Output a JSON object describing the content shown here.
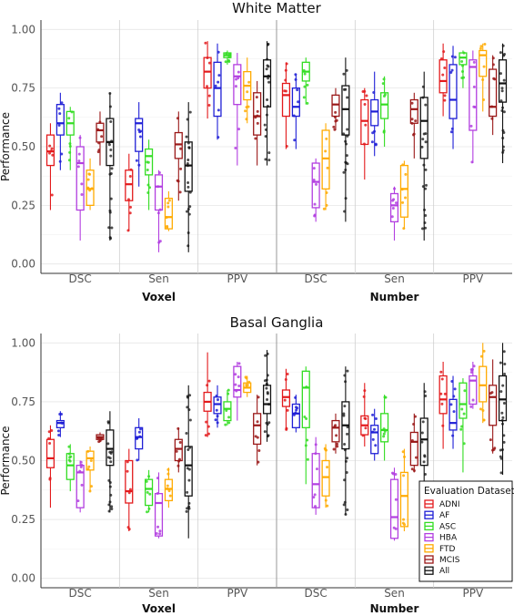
{
  "chart_data": {
    "type": "box",
    "ylabel": "Performance",
    "yticks": [
      0.0,
      0.25,
      0.5,
      0.75,
      1.0
    ],
    "ytick_labels": [
      "0.00",
      "0.25",
      "0.50",
      "0.75",
      "1.00"
    ],
    "ylim": [
      -0.04,
      1.04
    ],
    "groups": [
      "Voxel",
      "Number"
    ],
    "categories": [
      "DSC",
      "Sen",
      "PPV"
    ],
    "legend": {
      "title": "Evaluation Dataset",
      "placement": "bottom-right",
      "entries": [
        {
          "name": "ADNI",
          "color": "#e31a1c"
        },
        {
          "name": "AF",
          "color": "#1f1fd6"
        },
        {
          "name": "ASC",
          "color": "#33dd22"
        },
        {
          "name": "HBA",
          "color": "#b23ee0"
        },
        {
          "name": "FTD",
          "color": "#ffaa00"
        },
        {
          "name": "MCIS",
          "color": "#9a1818"
        },
        {
          "name": "All",
          "color": "#111111"
        }
      ]
    },
    "panels": [
      {
        "title": "White Matter",
        "groups": [
          {
            "name": "Voxel",
            "categories": [
              {
                "name": "DSC",
                "boxes": [
                  {
                    "q1": 0.42,
                    "med": 0.48,
                    "q3": 0.55,
                    "lo": 0.23,
                    "hi": 0.6
                  },
                  {
                    "q1": 0.55,
                    "med": 0.6,
                    "q3": 0.68,
                    "lo": 0.4,
                    "hi": 0.73
                  },
                  {
                    "q1": 0.55,
                    "med": 0.6,
                    "q3": 0.65,
                    "lo": 0.4,
                    "hi": 0.67
                  },
                  {
                    "q1": 0.23,
                    "med": 0.43,
                    "q3": 0.5,
                    "lo": 0.1,
                    "hi": 0.55
                  },
                  {
                    "q1": 0.25,
                    "med": 0.32,
                    "q3": 0.4,
                    "lo": 0.23,
                    "hi": 0.45
                  },
                  {
                    "q1": 0.52,
                    "med": 0.57,
                    "q3": 0.6,
                    "lo": 0.42,
                    "hi": 0.65
                  },
                  {
                    "q1": 0.42,
                    "med": 0.52,
                    "q3": 0.62,
                    "lo": 0.1,
                    "hi": 0.73
                  }
                ]
              },
              {
                "name": "Sen",
                "boxes": [
                  {
                    "q1": 0.27,
                    "med": 0.34,
                    "q3": 0.4,
                    "lo": 0.14,
                    "hi": 0.47
                  },
                  {
                    "q1": 0.48,
                    "med": 0.6,
                    "q3": 0.62,
                    "lo": 0.33,
                    "hi": 0.69
                  },
                  {
                    "q1": 0.38,
                    "med": 0.46,
                    "q3": 0.49,
                    "lo": 0.23,
                    "hi": 0.53
                  },
                  {
                    "q1": 0.23,
                    "med": 0.33,
                    "q3": 0.38,
                    "lo": 0.05,
                    "hi": 0.4
                  },
                  {
                    "q1": 0.15,
                    "med": 0.2,
                    "q3": 0.28,
                    "lo": 0.14,
                    "hi": 0.31
                  },
                  {
                    "q1": 0.45,
                    "med": 0.51,
                    "q3": 0.56,
                    "lo": 0.27,
                    "hi": 0.65
                  },
                  {
                    "q1": 0.31,
                    "med": 0.42,
                    "q3": 0.52,
                    "lo": 0.05,
                    "hi": 0.69
                  }
                ]
              },
              {
                "name": "PPV",
                "boxes": [
                  {
                    "q1": 0.75,
                    "med": 0.82,
                    "q3": 0.88,
                    "lo": 0.62,
                    "hi": 0.95
                  },
                  {
                    "q1": 0.63,
                    "med": 0.75,
                    "q3": 0.86,
                    "lo": 0.53,
                    "hi": 0.94
                  },
                  {
                    "q1": 0.88,
                    "med": 0.89,
                    "q3": 0.9,
                    "lo": 0.85,
                    "hi": 0.91
                  },
                  {
                    "q1": 0.68,
                    "med": 0.8,
                    "q3": 0.85,
                    "lo": 0.42,
                    "hi": 0.9
                  },
                  {
                    "q1": 0.7,
                    "med": 0.76,
                    "q3": 0.82,
                    "lo": 0.6,
                    "hi": 0.88
                  },
                  {
                    "q1": 0.55,
                    "med": 0.63,
                    "q3": 0.73,
                    "lo": 0.42,
                    "hi": 0.78
                  },
                  {
                    "q1": 0.67,
                    "med": 0.8,
                    "q3": 0.87,
                    "lo": 0.42,
                    "hi": 0.95
                  }
                ]
              }
            ]
          },
          {
            "name": "Number",
            "categories": [
              {
                "name": "DSC",
                "boxes": [
                  {
                    "q1": 0.63,
                    "med": 0.72,
                    "q3": 0.77,
                    "lo": 0.49,
                    "hi": 0.86
                  },
                  {
                    "q1": 0.63,
                    "med": 0.67,
                    "q3": 0.75,
                    "lo": 0.49,
                    "hi": 0.81
                  },
                  {
                    "q1": 0.78,
                    "med": 0.82,
                    "q3": 0.86,
                    "lo": 0.68,
                    "hi": 0.88
                  },
                  {
                    "q1": 0.24,
                    "med": 0.35,
                    "q3": 0.43,
                    "lo": 0.18,
                    "hi": 0.45
                  },
                  {
                    "q1": 0.32,
                    "med": 0.45,
                    "q3": 0.57,
                    "lo": 0.23,
                    "hi": 0.6
                  },
                  {
                    "q1": 0.63,
                    "med": 0.68,
                    "q3": 0.72,
                    "lo": 0.57,
                    "hi": 0.75
                  },
                  {
                    "q1": 0.55,
                    "med": 0.66,
                    "q3": 0.76,
                    "lo": 0.18,
                    "hi": 0.88
                  }
                ]
              },
              {
                "name": "Sen",
                "boxes": [
                  {
                    "q1": 0.51,
                    "med": 0.61,
                    "q3": 0.7,
                    "lo": 0.36,
                    "hi": 0.75
                  },
                  {
                    "q1": 0.59,
                    "med": 0.65,
                    "q3": 0.7,
                    "lo": 0.46,
                    "hi": 0.82
                  },
                  {
                    "q1": 0.62,
                    "med": 0.68,
                    "q3": 0.73,
                    "lo": 0.5,
                    "hi": 0.8
                  },
                  {
                    "q1": 0.18,
                    "med": 0.25,
                    "q3": 0.3,
                    "lo": 0.1,
                    "hi": 0.33
                  },
                  {
                    "q1": 0.2,
                    "med": 0.32,
                    "q3": 0.42,
                    "lo": 0.15,
                    "hi": 0.44
                  },
                  {
                    "q1": 0.6,
                    "med": 0.66,
                    "q3": 0.7,
                    "lo": 0.45,
                    "hi": 0.73
                  },
                  {
                    "q1": 0.45,
                    "med": 0.61,
                    "q3": 0.71,
                    "lo": 0.1,
                    "hi": 0.82
                  }
                ]
              },
              {
                "name": "PPV",
                "boxes": [
                  {
                    "q1": 0.73,
                    "med": 0.78,
                    "q3": 0.87,
                    "lo": 0.63,
                    "hi": 0.94
                  },
                  {
                    "q1": 0.62,
                    "med": 0.7,
                    "q3": 0.85,
                    "lo": 0.49,
                    "hi": 0.93
                  },
                  {
                    "q1": 0.85,
                    "med": 0.88,
                    "q3": 0.9,
                    "lo": 0.75,
                    "hi": 0.91
                  },
                  {
                    "q1": 0.57,
                    "med": 0.84,
                    "q3": 0.87,
                    "lo": 0.43,
                    "hi": 0.91
                  },
                  {
                    "q1": 0.8,
                    "med": 0.89,
                    "q3": 0.91,
                    "lo": 0.65,
                    "hi": 0.94
                  },
                  {
                    "q1": 0.63,
                    "med": 0.67,
                    "q3": 0.83,
                    "lo": 0.55,
                    "hi": 0.89
                  },
                  {
                    "q1": 0.69,
                    "med": 0.77,
                    "q3": 0.87,
                    "lo": 0.43,
                    "hi": 0.94
                  }
                ]
              }
            ]
          }
        ]
      },
      {
        "title": "Basal Ganglia",
        "groups": [
          {
            "name": "Voxel",
            "categories": [
              {
                "name": "DSC",
                "boxes": [
                  {
                    "q1": 0.47,
                    "med": 0.51,
                    "q3": 0.59,
                    "lo": 0.3,
                    "hi": 0.65
                  },
                  {
                    "q1": 0.64,
                    "med": 0.66,
                    "q3": 0.67,
                    "lo": 0.6,
                    "hi": 0.71
                  },
                  {
                    "q1": 0.42,
                    "med": 0.48,
                    "q3": 0.53,
                    "lo": 0.37,
                    "hi": 0.57
                  },
                  {
                    "q1": 0.3,
                    "med": 0.45,
                    "q3": 0.48,
                    "lo": 0.28,
                    "hi": 0.5
                  },
                  {
                    "q1": 0.46,
                    "med": 0.51,
                    "q3": 0.54,
                    "lo": 0.37,
                    "hi": 0.56
                  },
                  {
                    "q1": 0.59,
                    "med": 0.6,
                    "q3": 0.61,
                    "lo": 0.58,
                    "hi": 0.62
                  },
                  {
                    "q1": 0.48,
                    "med": 0.55,
                    "q3": 0.63,
                    "lo": 0.28,
                    "hi": 0.71
                  }
                ]
              },
              {
                "name": "Sen",
                "boxes": [
                  {
                    "q1": 0.32,
                    "med": 0.37,
                    "q3": 0.5,
                    "lo": 0.2,
                    "hi": 0.55
                  },
                  {
                    "q1": 0.55,
                    "med": 0.6,
                    "q3": 0.64,
                    "lo": 0.5,
                    "hi": 0.68
                  },
                  {
                    "q1": 0.31,
                    "med": 0.38,
                    "q3": 0.42,
                    "lo": 0.28,
                    "hi": 0.46
                  },
                  {
                    "q1": 0.18,
                    "med": 0.32,
                    "q3": 0.36,
                    "lo": 0.17,
                    "hi": 0.45
                  },
                  {
                    "q1": 0.33,
                    "med": 0.38,
                    "q3": 0.42,
                    "lo": 0.3,
                    "hi": 0.47
                  },
                  {
                    "q1": 0.5,
                    "med": 0.55,
                    "q3": 0.59,
                    "lo": 0.45,
                    "hi": 0.64
                  },
                  {
                    "q1": 0.35,
                    "med": 0.48,
                    "q3": 0.56,
                    "lo": 0.17,
                    "hi": 0.82
                  }
                ]
              },
              {
                "name": "PPV",
                "boxes": [
                  {
                    "q1": 0.71,
                    "med": 0.75,
                    "q3": 0.79,
                    "lo": 0.6,
                    "hi": 0.96
                  },
                  {
                    "q1": 0.7,
                    "med": 0.74,
                    "q3": 0.77,
                    "lo": 0.64,
                    "hi": 0.82
                  },
                  {
                    "q1": 0.67,
                    "med": 0.72,
                    "q3": 0.75,
                    "lo": 0.65,
                    "hi": 0.8
                  },
                  {
                    "q1": 0.77,
                    "med": 0.8,
                    "q3": 0.9,
                    "lo": 0.67,
                    "hi": 0.92
                  },
                  {
                    "q1": 0.79,
                    "med": 0.81,
                    "q3": 0.83,
                    "lo": 0.77,
                    "hi": 0.86
                  },
                  {
                    "q1": 0.57,
                    "med": 0.65,
                    "q3": 0.7,
                    "lo": 0.48,
                    "hi": 0.78
                  },
                  {
                    "q1": 0.7,
                    "med": 0.74,
                    "q3": 0.82,
                    "lo": 0.58,
                    "hi": 0.97
                  }
                ]
              }
            ]
          },
          {
            "name": "Number",
            "categories": [
              {
                "name": "DSC",
                "boxes": [
                  {
                    "q1": 0.73,
                    "med": 0.77,
                    "q3": 0.8,
                    "lo": 0.63,
                    "hi": 0.89
                  },
                  {
                    "q1": 0.64,
                    "med": 0.7,
                    "q3": 0.74,
                    "lo": 0.62,
                    "hi": 0.78
                  },
                  {
                    "q1": 0.64,
                    "med": 0.81,
                    "q3": 0.88,
                    "lo": 0.4,
                    "hi": 0.9
                  },
                  {
                    "q1": 0.3,
                    "med": 0.4,
                    "q3": 0.53,
                    "lo": 0.27,
                    "hi": 0.6
                  },
                  {
                    "q1": 0.35,
                    "med": 0.43,
                    "q3": 0.5,
                    "lo": 0.3,
                    "hi": 0.57
                  },
                  {
                    "q1": 0.58,
                    "med": 0.64,
                    "q3": 0.67,
                    "lo": 0.53,
                    "hi": 0.7
                  },
                  {
                    "q1": 0.55,
                    "med": 0.65,
                    "q3": 0.75,
                    "lo": 0.27,
                    "hi": 0.9
                  }
                ]
              },
              {
                "name": "Sen",
                "boxes": [
                  {
                    "q1": 0.61,
                    "med": 0.65,
                    "q3": 0.69,
                    "lo": 0.56,
                    "hi": 0.83
                  },
                  {
                    "q1": 0.53,
                    "med": 0.62,
                    "q3": 0.65,
                    "lo": 0.5,
                    "hi": 0.72
                  },
                  {
                    "q1": 0.58,
                    "med": 0.63,
                    "q3": 0.7,
                    "lo": 0.5,
                    "hi": 0.78
                  },
                  {
                    "q1": 0.17,
                    "med": 0.26,
                    "q3": 0.42,
                    "lo": 0.16,
                    "hi": 0.47
                  },
                  {
                    "q1": 0.22,
                    "med": 0.35,
                    "q3": 0.45,
                    "lo": 0.2,
                    "hi": 0.55
                  },
                  {
                    "q1": 0.48,
                    "med": 0.58,
                    "q3": 0.62,
                    "lo": 0.45,
                    "hi": 0.7
                  },
                  {
                    "q1": 0.48,
                    "med": 0.59,
                    "q3": 0.68,
                    "lo": 0.16,
                    "hi": 0.83
                  }
                ]
              },
              {
                "name": "PPV",
                "boxes": [
                  {
                    "q1": 0.7,
                    "med": 0.76,
                    "q3": 0.86,
                    "lo": 0.55,
                    "hi": 0.92
                  },
                  {
                    "q1": 0.63,
                    "med": 0.66,
                    "q3": 0.76,
                    "lo": 0.55,
                    "hi": 0.86
                  },
                  {
                    "q1": 0.68,
                    "med": 0.74,
                    "q3": 0.83,
                    "lo": 0.45,
                    "hi": 0.85
                  },
                  {
                    "q1": 0.74,
                    "med": 0.84,
                    "q3": 0.86,
                    "lo": 0.72,
                    "hi": 0.92
                  },
                  {
                    "q1": 0.75,
                    "med": 0.82,
                    "q3": 0.9,
                    "lo": 0.66,
                    "hi": 1.0
                  },
                  {
                    "q1": 0.65,
                    "med": 0.77,
                    "q3": 0.82,
                    "lo": 0.53,
                    "hi": 0.93
                  },
                  {
                    "q1": 0.67,
                    "med": 0.76,
                    "q3": 0.86,
                    "lo": 0.44,
                    "hi": 1.0
                  }
                ]
              }
            ]
          }
        ]
      }
    ]
  }
}
